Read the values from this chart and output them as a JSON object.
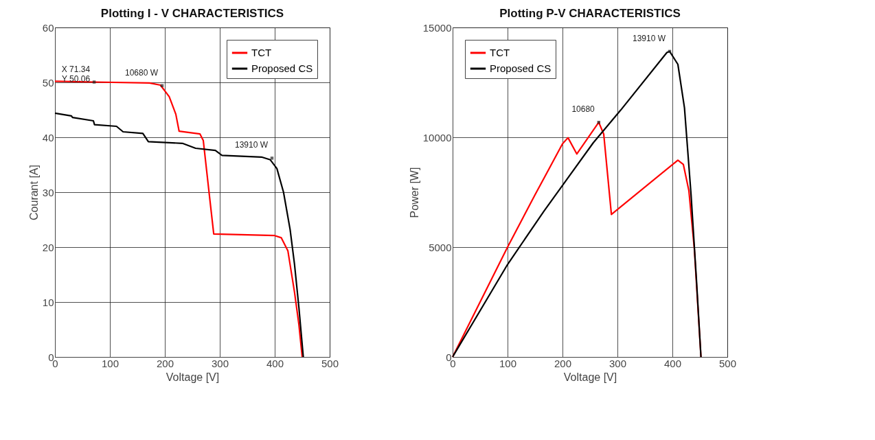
{
  "chart_data": [
    {
      "type": "line",
      "title": "Plotting  I - V CHARACTERISTICS",
      "xlabel": "Voltage [V]",
      "ylabel": "Courant [A]",
      "xlim": [
        0,
        500
      ],
      "ylim": [
        0,
        60
      ],
      "xticks": [
        0,
        100,
        200,
        300,
        400,
        500
      ],
      "yticks": [
        0,
        10,
        20,
        30,
        40,
        50,
        60
      ],
      "grid": true,
      "legend": "top right",
      "line_style": "solid",
      "series": [
        {
          "name": "TCT",
          "color": "#ff0000",
          "x": [
            0,
            71.34,
            172,
            192,
            208,
            220,
            226,
            264,
            270,
            280,
            289,
            400,
            412,
            424,
            436,
            444,
            450
          ],
          "values": [
            50.2,
            50.06,
            49.9,
            49.5,
            47.4,
            44.2,
            41.1,
            40.6,
            39.4,
            30.4,
            22.4,
            22.1,
            21.7,
            19.3,
            11.8,
            5.9,
            0
          ]
        },
        {
          "name": "Proposed CS",
          "color": "#000000",
          "x": [
            0,
            30,
            32,
            70,
            72,
            112,
            124,
            160,
            170,
            232,
            256,
            292,
            304,
            376,
            392,
            404,
            416,
            428,
            436,
            444,
            452
          ],
          "values": [
            44.4,
            43.9,
            43.6,
            43.0,
            42.3,
            42.0,
            41.0,
            40.7,
            39.2,
            38.9,
            38.0,
            37.6,
            36.7,
            36.4,
            35.9,
            34.3,
            30,
            23.2,
            16.9,
            9,
            0
          ]
        }
      ],
      "annotations": [
        {
          "text": "X 71.34\nY 50.06",
          "x": 71.34,
          "y": 50.06
        },
        {
          "text": "10680 W",
          "x": 195,
          "y": 49.4
        },
        {
          "text": "13910 W",
          "x": 395,
          "y": 36.2
        }
      ]
    },
    {
      "type": "line",
      "title": "Plotting  P-V CHARACTERISTICS",
      "xlabel": "Voltage [V]",
      "ylabel": "Power [W]",
      "xlim": [
        0,
        500
      ],
      "ylim": [
        0,
        15000
      ],
      "xticks": [
        0,
        100,
        200,
        300,
        400,
        500
      ],
      "yticks": [
        0,
        5000,
        10000,
        15000
      ],
      "grid": true,
      "legend": "top left",
      "line_style": "solid",
      "series": [
        {
          "name": "TCT",
          "color": "#ff0000",
          "x": [
            0,
            100,
            150,
            200,
            210,
            226,
            266,
            275,
            289,
            410,
            420,
            430,
            440,
            452
          ],
          "values": [
            0,
            5000,
            7380,
            9700,
            9980,
            9240,
            10680,
            10150,
            6490,
            8960,
            8760,
            7570,
            4900,
            0
          ]
        },
        {
          "name": "Proposed CS",
          "color": "#000000",
          "x": [
            0,
            100,
            166,
            256,
            306,
            390,
            395,
            410,
            422,
            434,
            444,
            452
          ],
          "values": [
            0,
            4210,
            6630,
            9750,
            11240,
            13860,
            13910,
            13320,
            11340,
            7380,
            3420,
            0
          ]
        }
      ],
      "annotations": [
        {
          "text": "10680",
          "x": 266,
          "y": 10680
        },
        {
          "text": "13910 W",
          "x": 395,
          "y": 13910
        }
      ]
    }
  ]
}
